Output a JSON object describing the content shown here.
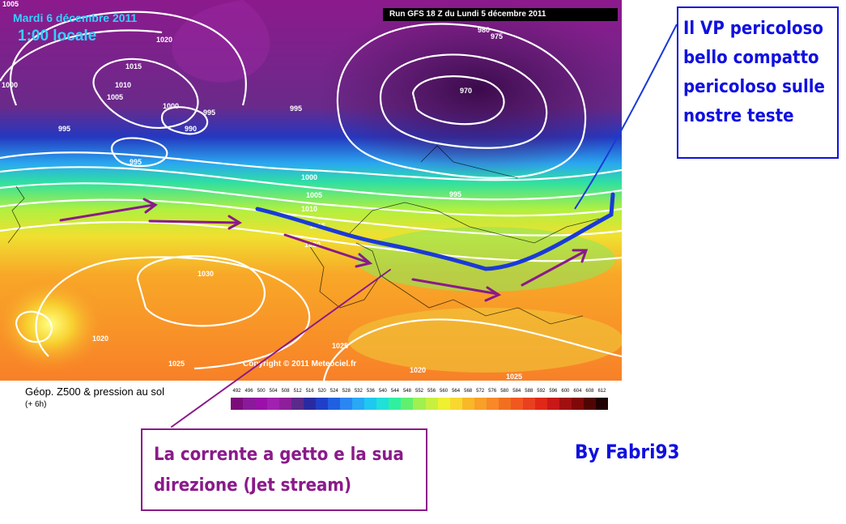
{
  "map": {
    "date_line": "Mardi 6 décembre 2011",
    "time_line": "1:00 locale",
    "run_info": "Run GFS 18 Z du Lundi 5 décembre 2011",
    "copyright": "Copyright © 2011 Meteociel.fr",
    "isobar_labels": [
      "1005",
      "1020",
      "1015",
      "1010",
      "1005",
      "1000",
      "995",
      "990",
      "995",
      "1000",
      "995",
      "1000",
      "1005",
      "1010",
      "1015",
      "1020",
      "1030",
      "1020",
      "1025",
      "1025",
      "1020",
      "1025",
      "980",
      "975",
      "970",
      "995",
      "995"
    ]
  },
  "legend": {
    "title": "Géop. Z500 & pression au sol",
    "subtitle": "(+ 6h)",
    "scale_values": [
      "492",
      "496",
      "500",
      "504",
      "508",
      "512",
      "516",
      "520",
      "524",
      "528",
      "532",
      "536",
      "540",
      "544",
      "548",
      "552",
      "556",
      "560",
      "564",
      "568",
      "572",
      "576",
      "580",
      "584",
      "588",
      "592",
      "596",
      "600",
      "604",
      "608",
      "612"
    ],
    "scale_colors": [
      "#7a0d7a",
      "#8a1a9a",
      "#9a10a8",
      "#a020b0",
      "#8e1e9a",
      "#5a2a8a",
      "#2a2aa0",
      "#1f3fc8",
      "#2060e0",
      "#2a86f0",
      "#28a8f5",
      "#20c8f0",
      "#20e0d8",
      "#30f0a0",
      "#60f070",
      "#a0f050",
      "#c8f040",
      "#eef030",
      "#f8d830",
      "#f8b828",
      "#f8a028",
      "#f88828",
      "#f07020",
      "#f05820",
      "#e84020",
      "#e02818",
      "#c81818",
      "#a01010",
      "#800808",
      "#500505",
      "#200000"
    ]
  },
  "annotations": {
    "vp_lines": [
      "Il VP pericoloso",
      "bello compatto",
      "pericoloso sulle",
      "nostre teste"
    ],
    "jet_lines": [
      "La corrente a getto e la sua",
      "direzione (Jet stream)"
    ],
    "byline": "By Fabri93"
  },
  "colors": {
    "annotation_blue": "#1010e0",
    "annotation_purple": "#8a1a8a",
    "jet_blue": "#1a3ad8"
  }
}
